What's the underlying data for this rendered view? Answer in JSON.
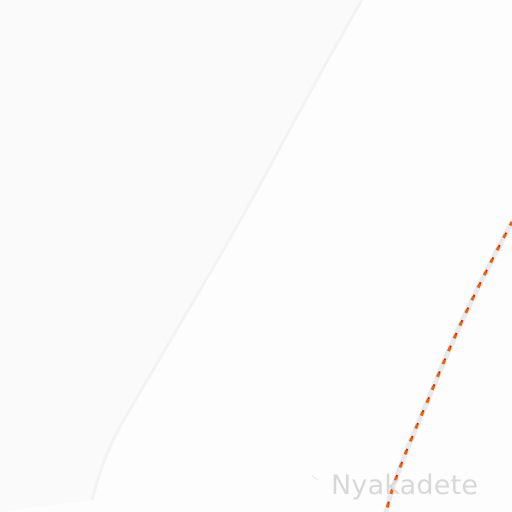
{
  "map": {
    "labels": {
      "place": "Nyakadete"
    },
    "colors": {
      "background": "#fdfdfd",
      "landuse_area": "#fafafa",
      "area_edge": "#f3f3f3",
      "road_casing": "#e9e9e9",
      "path_dash": "#e8610c",
      "path_dash_alt": "#cc2200",
      "label_text": "#d8d8d8"
    }
  }
}
